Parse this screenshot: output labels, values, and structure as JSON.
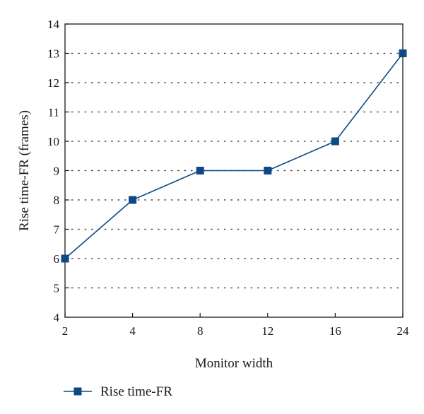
{
  "chart_data": {
    "type": "line",
    "title": "",
    "xlabel": "Monitor width",
    "ylabel": "Rise time-FR (frames)",
    "categories": [
      "2",
      "4",
      "8",
      "12",
      "16",
      "24"
    ],
    "yticks": [
      "4",
      "5",
      "6",
      "7",
      "8",
      "9",
      "10",
      "11",
      "12",
      "13",
      "14"
    ],
    "ylim": [
      4,
      14
    ],
    "grid": "horizontal-dotted",
    "legend_position": "bottom-left",
    "series": [
      {
        "name": "Rise time-FR",
        "values": [
          6,
          8,
          9,
          9,
          10,
          13
        ],
        "color": "#0d4a85",
        "marker": "square"
      }
    ]
  }
}
